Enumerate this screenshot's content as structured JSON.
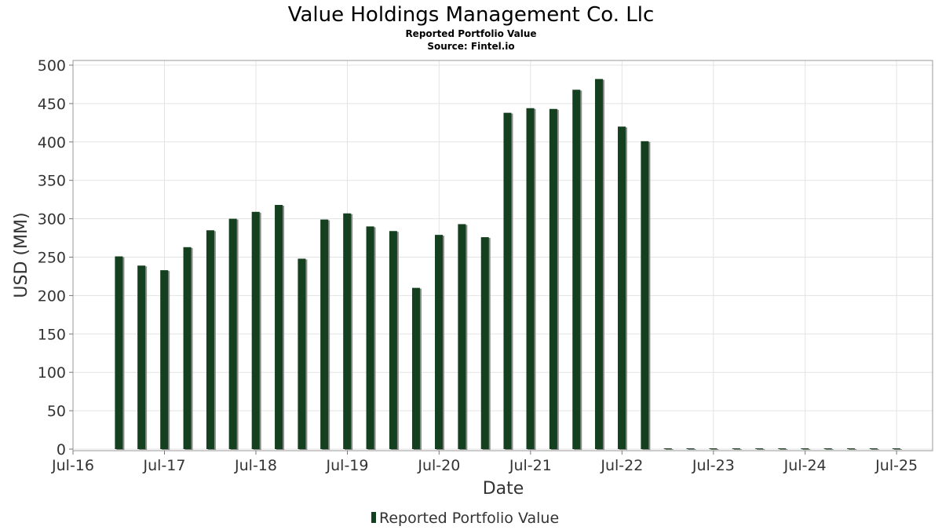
{
  "chart_data": {
    "type": "bar",
    "title": "Value Holdings Management Co. Llc",
    "subtitle": "Reported Portfolio Value",
    "source": "Source: Fintel.io",
    "xlabel": "Date",
    "ylabel": "USD (MM)",
    "ylim": [
      0,
      500
    ],
    "yticks": [
      0,
      50,
      100,
      150,
      200,
      250,
      300,
      350,
      400,
      450,
      500
    ],
    "xlim": [
      "2016-07-01",
      "2025-10-15"
    ],
    "xticks": [
      {
        "label": "Jul-16",
        "date": "2016-07-01"
      },
      {
        "label": "Jul-17",
        "date": "2017-07-01"
      },
      {
        "label": "Jul-18",
        "date": "2018-07-01"
      },
      {
        "label": "Jul-19",
        "date": "2019-07-01"
      },
      {
        "label": "Jul-20",
        "date": "2020-07-01"
      },
      {
        "label": "Jul-21",
        "date": "2021-07-01"
      },
      {
        "label": "Jul-22",
        "date": "2022-07-01"
      },
      {
        "label": "Jul-23",
        "date": "2023-07-01"
      },
      {
        "label": "Jul-24",
        "date": "2024-07-01"
      },
      {
        "label": "Jul-25",
        "date": "2025-07-01"
      }
    ],
    "grid": true,
    "legend_position": "bottom-center",
    "series": [
      {
        "name": "Reported Portfolio Value",
        "color": "#15401f",
        "shadow_color": "#8c8c8c",
        "x": [
          "2016-12-31",
          "2017-03-31",
          "2017-06-30",
          "2017-09-30",
          "2017-12-31",
          "2018-03-31",
          "2018-06-30",
          "2018-09-30",
          "2018-12-31",
          "2019-03-31",
          "2019-06-30",
          "2019-09-30",
          "2019-12-31",
          "2020-03-31",
          "2020-06-30",
          "2020-09-30",
          "2020-12-31",
          "2021-03-31",
          "2021-06-30",
          "2021-09-30",
          "2021-12-31",
          "2022-03-31",
          "2022-06-30",
          "2022-09-30",
          "2022-12-31",
          "2023-03-31",
          "2023-06-30",
          "2023-09-30",
          "2023-12-31",
          "2024-03-31",
          "2024-06-30",
          "2024-09-30",
          "2024-12-31",
          "2025-03-31",
          "2025-06-30"
        ],
        "values": [
          251,
          239,
          233,
          263,
          285,
          300,
          309,
          318,
          248,
          299,
          307,
          290,
          284,
          210,
          279,
          293,
          276,
          438,
          444,
          443,
          468,
          482,
          420,
          401,
          0,
          0,
          0,
          0,
          0,
          0,
          0,
          0,
          0,
          0,
          0
        ]
      }
    ]
  }
}
